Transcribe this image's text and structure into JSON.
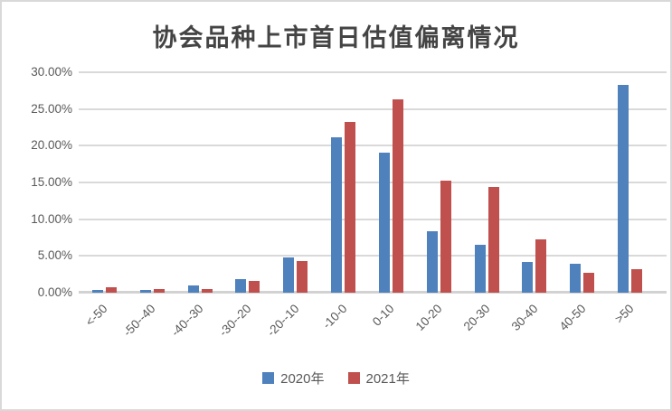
{
  "chart_data": {
    "type": "bar",
    "title": "协会品种上市首日估值偏离情况",
    "categories": [
      "<-50",
      "-50--40",
      "-40--30",
      "-30--20",
      "-20--10",
      "-10-0",
      "0-10",
      "10-20",
      "20-30",
      "30-40",
      "40-50",
      ">50"
    ],
    "series": [
      {
        "name": "2020年",
        "color": "#4F81BD",
        "values": [
          0.35,
          0.35,
          0.95,
          1.85,
          4.8,
          21.1,
          19.1,
          8.35,
          6.5,
          4.2,
          3.9,
          28.3
        ]
      },
      {
        "name": "2021年",
        "color": "#C0504D",
        "values": [
          0.75,
          0.45,
          0.55,
          1.6,
          4.35,
          23.2,
          26.3,
          15.2,
          14.4,
          7.25,
          2.65,
          3.2
        ]
      }
    ],
    "ylabel": "",
    "xlabel": "",
    "ylim": [
      0,
      30
    ],
    "ytick_step": 5,
    "ytick_labels": [
      "0.00%",
      "5.00%",
      "10.00%",
      "15.00%",
      "20.00%",
      "25.00%",
      "30.00%"
    ],
    "grid": "horizontal",
    "legend_position": "bottom"
  },
  "colors": {
    "grid": "#D9D9D9",
    "axis_text": "#595959",
    "title_text": "#444444",
    "frame_border": "#D9D9D9"
  }
}
